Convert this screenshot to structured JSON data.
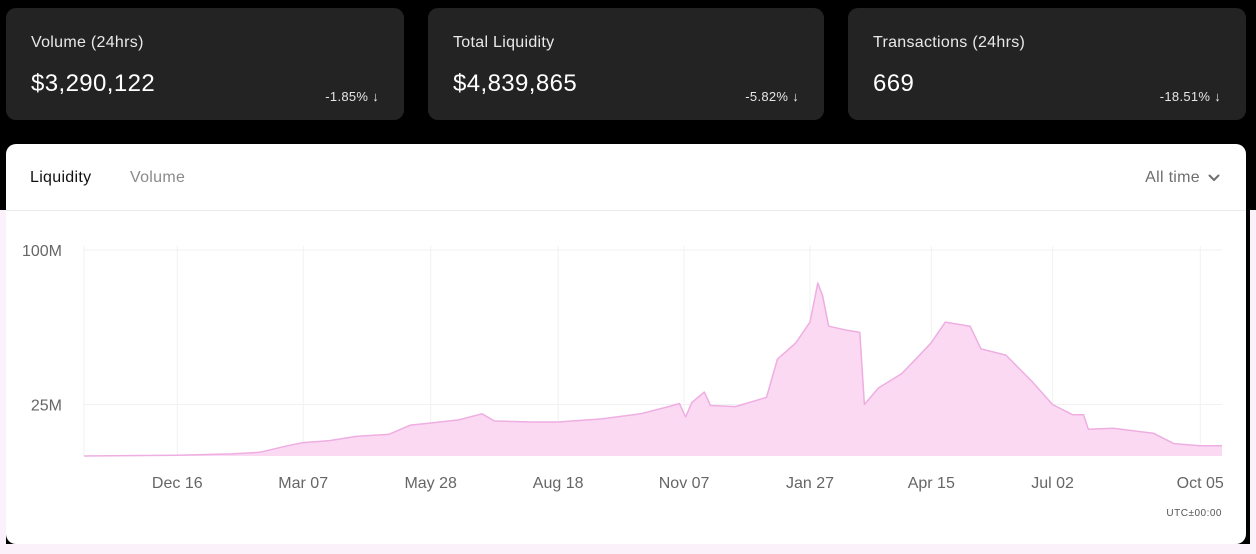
{
  "stats": [
    {
      "label": "Volume (24hrs)",
      "value": "$3,290,122",
      "change": "-1.85% ↓"
    },
    {
      "label": "Total Liquidity",
      "value": "$4,839,865",
      "change": "-5.82% ↓"
    },
    {
      "label": "Transactions (24hrs)",
      "value": "669",
      "change": "-18.51% ↓"
    }
  ],
  "tabs": {
    "liquidity": "Liquidity",
    "volume": "Volume",
    "active": "Liquidity"
  },
  "range": {
    "selected": "All time",
    "icon": "chevron-down-icon"
  },
  "colors": {
    "fill": "#fbd9f3",
    "stroke": "#eeaee1",
    "grid": "#f1f1f1",
    "card_bg": "#232323"
  },
  "chart_data": {
    "type": "area",
    "series": [
      {
        "name": "",
        "values": []
      }
    ],
    "ylabel": "",
    "xlabel": "",
    "y_ticks": [
      {
        "label": "100M",
        "value": 100
      },
      {
        "label": "25M",
        "value": 25
      }
    ],
    "x_ticks": [
      "Dec 16",
      "Mar 07",
      "May 28",
      "Aug 18",
      "Nov 07",
      "Jan 27",
      "Apr 15",
      "Jul 02",
      "Oct 05"
    ],
    "ylim": [
      0,
      100
    ],
    "grid": true,
    "unit_note": "UTC±00:00",
    "points": [
      {
        "x": "Oct 17",
        "y": 0
      },
      {
        "x": "Dec 16",
        "y": 0.4
      },
      {
        "x": "Jan 20",
        "y": 1
      },
      {
        "x": "Feb 07",
        "y": 1.8
      },
      {
        "x": "Feb 25",
        "y": 5
      },
      {
        "x": "Mar 07",
        "y": 6.5
      },
      {
        "x": "Mar 24",
        "y": 7.5
      },
      {
        "x": "Apr 10",
        "y": 9.5
      },
      {
        "x": "May 01",
        "y": 10.5
      },
      {
        "x": "May 15",
        "y": 15
      },
      {
        "x": "May 28",
        "y": 16
      },
      {
        "x": "Jun 15",
        "y": 17.5
      },
      {
        "x": "Jun 30",
        "y": 20.5
      },
      {
        "x": "Jul 08",
        "y": 17
      },
      {
        "x": "Aug 01",
        "y": 16.5
      },
      {
        "x": "Aug 18",
        "y": 16.5
      },
      {
        "x": "Sep 15",
        "y": 18
      },
      {
        "x": "Oct 10",
        "y": 20.5
      },
      {
        "x": "Oct 28",
        "y": 24
      },
      {
        "x": "Nov 04",
        "y": 25.5
      },
      {
        "x": "Nov 08",
        "y": 19
      },
      {
        "x": "Nov 12",
        "y": 26
      },
      {
        "x": "Nov 20",
        "y": 31
      },
      {
        "x": "Nov 24",
        "y": 24.5
      },
      {
        "x": "Dec 10",
        "y": 24
      },
      {
        "x": "Dec 30",
        "y": 28.5
      },
      {
        "x": "Jan 06",
        "y": 47
      },
      {
        "x": "Jan 18",
        "y": 55
      },
      {
        "x": "Jan 27",
        "y": 65
      },
      {
        "x": "Feb 01",
        "y": 84
      },
      {
        "x": "Feb 04",
        "y": 78
      },
      {
        "x": "Feb 08",
        "y": 63
      },
      {
        "x": "Feb 20",
        "y": 61
      },
      {
        "x": "Feb 28",
        "y": 60
      },
      {
        "x": "Mar 03",
        "y": 25
      },
      {
        "x": "Mar 12",
        "y": 33
      },
      {
        "x": "Mar 27",
        "y": 40
      },
      {
        "x": "Apr 05",
        "y": 47
      },
      {
        "x": "Apr 15",
        "y": 55
      },
      {
        "x": "Apr 24",
        "y": 65
      },
      {
        "x": "May 10",
        "y": 63
      },
      {
        "x": "May 17",
        "y": 52
      },
      {
        "x": "Jun 02",
        "y": 49
      },
      {
        "x": "Jun 19",
        "y": 36
      },
      {
        "x": "Jul 02",
        "y": 25
      },
      {
        "x": "Jul 15",
        "y": 20
      },
      {
        "x": "Jul 22",
        "y": 20
      },
      {
        "x": "Jul 25",
        "y": 13
      },
      {
        "x": "Aug 10",
        "y": 13.5
      },
      {
        "x": "Sep 05",
        "y": 11
      },
      {
        "x": "Sep 18",
        "y": 6
      },
      {
        "x": "Oct 05",
        "y": 5
      },
      {
        "x": "Oct 19",
        "y": 5
      }
    ]
  }
}
